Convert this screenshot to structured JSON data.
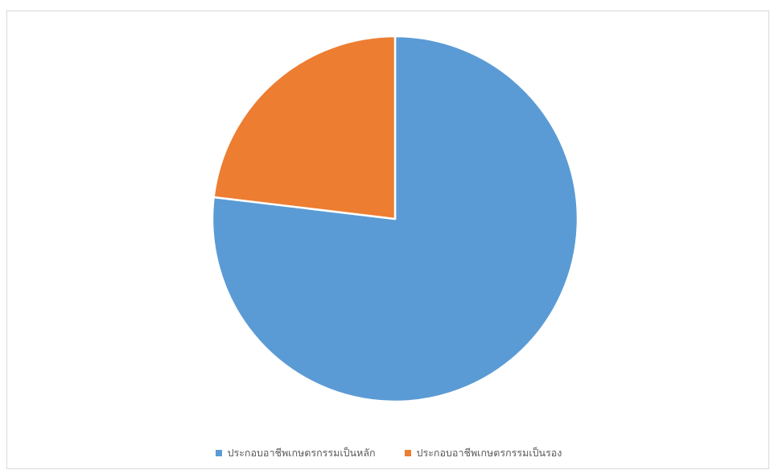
{
  "chart_data": {
    "type": "pie",
    "start_angle_deg": 0,
    "direction": "clockwise",
    "legend_position": "bottom",
    "slices": [
      {
        "label": "ประกอบอาชีพเกษตรกรรมเป็นหลัก",
        "value": 76.9,
        "color": "#5b9bd5"
      },
      {
        "label": "ประกอบอาชีพเกษตรกรรมเป็นรอง",
        "value": 23.1,
        "color": "#ed7d31"
      }
    ]
  }
}
